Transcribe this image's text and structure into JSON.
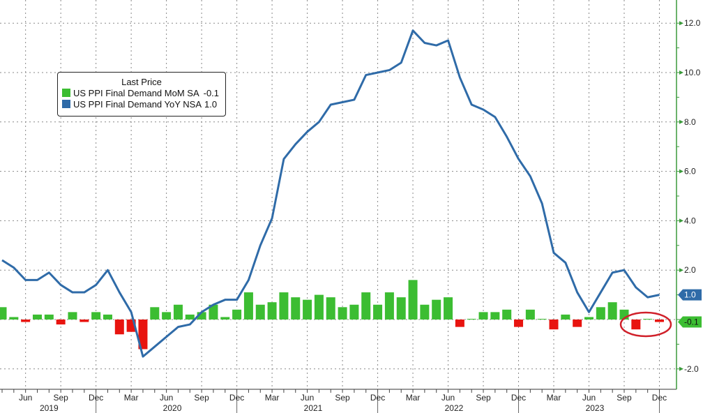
{
  "chart_data": {
    "type": "bar+line",
    "legend": {
      "title": "Last Price",
      "placement": "top-left",
      "entries": [
        {
          "label": "US PPI Final Demand MoM SA",
          "last": "-0.1",
          "color": "#3cbd32"
        },
        {
          "label": "US PPI Final Demand YoY NSA",
          "last": "1.0",
          "color": "#2f6ba8"
        }
      ]
    },
    "x_start": "2019-04",
    "x_end": "2023-12",
    "month_tick_labels": [
      "Jun",
      "Sep",
      "Dec",
      "Mar",
      "Jun",
      "Sep",
      "Dec",
      "Mar",
      "Jun",
      "Sep",
      "Dec",
      "Mar",
      "Jun",
      "Sep",
      "Dec",
      "Mar",
      "Jun",
      "Sep",
      "Dec"
    ],
    "year_labels": [
      "2019",
      "2020",
      "2021",
      "2022",
      "2023"
    ],
    "y_ticks": [
      "12.0",
      "10.0",
      "8.0",
      "6.0",
      "4.0",
      "2.0",
      "-2.0"
    ],
    "ylim": [
      -2.8,
      12.8
    ],
    "y_axis_side": "right",
    "grid": true,
    "positive_bar_color": "#3cbd32",
    "negative_bar_color": "#e8140f",
    "series": [
      {
        "name": "US PPI Final Demand MoM SA",
        "kind": "bar",
        "values": [
          0.5,
          0.1,
          -0.1,
          0.2,
          0.2,
          -0.2,
          0.3,
          -0.1,
          0.3,
          0.2,
          -0.6,
          -0.5,
          -1.2,
          0.5,
          0.3,
          0.6,
          0.2,
          0.3,
          0.6,
          0.1,
          0.4,
          1.1,
          0.6,
          0.7,
          1.1,
          0.9,
          0.8,
          1.0,
          0.9,
          0.5,
          0.6,
          1.1,
          0.6,
          1.1,
          0.9,
          1.6,
          0.6,
          0.8,
          0.9,
          -0.3,
          0.0,
          0.3,
          0.3,
          0.4,
          -0.3,
          0.4,
          0.0,
          -0.4,
          0.2,
          -0.3,
          0.1,
          0.5,
          0.7,
          0.4,
          -0.4,
          0.0,
          -0.1
        ]
      },
      {
        "name": "US PPI Final Demand YoY NSA",
        "kind": "line",
        "color": "#2f6ba8",
        "values": [
          2.4,
          2.1,
          1.6,
          1.6,
          1.9,
          1.4,
          1.1,
          1.1,
          1.4,
          2.0,
          1.1,
          0.3,
          -1.5,
          -1.1,
          -0.7,
          -0.3,
          -0.2,
          0.3,
          0.6,
          0.8,
          0.8,
          1.6,
          3.0,
          4.1,
          6.5,
          7.1,
          7.6,
          8.0,
          8.7,
          8.8,
          8.9,
          9.9,
          10.0,
          10.1,
          10.4,
          11.7,
          11.2,
          11.1,
          11.3,
          9.8,
          8.7,
          8.5,
          8.2,
          7.4,
          6.5,
          5.8,
          4.7,
          2.7,
          2.3,
          1.1,
          0.3,
          1.1,
          1.9,
          2.0,
          1.3,
          0.9,
          1.0
        ]
      }
    ],
    "last_value_tags": [
      "1.0",
      "-0.1"
    ],
    "annotation": "red-ellipse-around-last-three-mom-bars"
  }
}
